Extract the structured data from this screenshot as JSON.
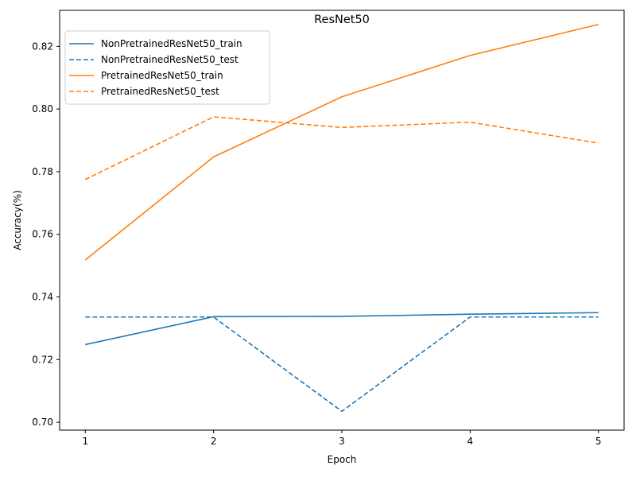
{
  "chart_data": {
    "type": "line",
    "title": "ResNet50",
    "xlabel": "Epoch",
    "ylabel": "Accuracy(%)",
    "x": [
      1,
      2,
      3,
      4,
      5
    ],
    "xticks": [
      "1",
      "2",
      "3",
      "4",
      "5"
    ],
    "yticks": [
      "0.70",
      "0.72",
      "0.74",
      "0.76",
      "0.78",
      "0.80",
      "0.82"
    ],
    "xlim": [
      0.8,
      5.2
    ],
    "ylim": [
      0.6975,
      0.8315
    ],
    "grid": false,
    "legend_position": "top-left",
    "series": [
      {
        "name": "NonPretrainedResNet50_train",
        "color": "#1f77b4",
        "dash": "solid",
        "values": [
          0.7248,
          0.7337,
          0.7338,
          0.7345,
          0.735
        ]
      },
      {
        "name": "NonPretrainedResNet50_test",
        "color": "#1f77b4",
        "dash": "dashed",
        "values": [
          0.7336,
          0.7336,
          0.7035,
          0.7336,
          0.7336
        ]
      },
      {
        "name": "PretrainedResNet50_train",
        "color": "#ff7f0e",
        "dash": "solid",
        "values": [
          0.7518,
          0.7847,
          0.8039,
          0.8171,
          0.827
        ]
      },
      {
        "name": "PretrainedResNet50_test",
        "color": "#ff7f0e",
        "dash": "dashed",
        "values": [
          0.7775,
          0.7975,
          0.7941,
          0.7958,
          0.7891
        ]
      }
    ]
  }
}
